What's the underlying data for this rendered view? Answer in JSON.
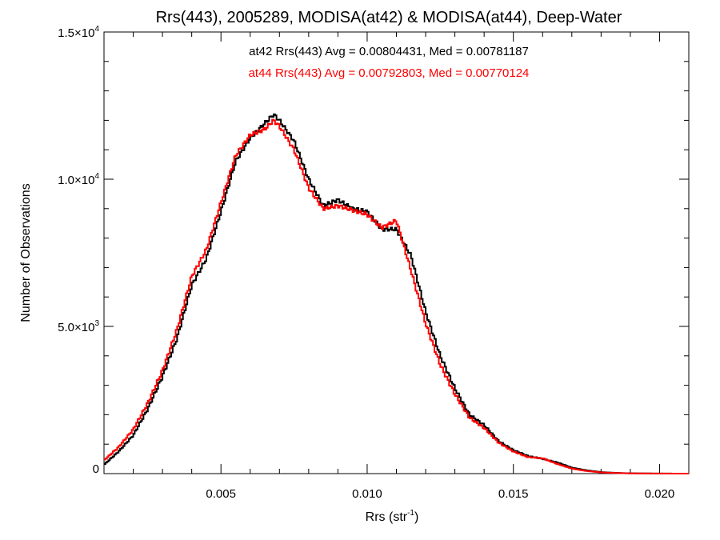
{
  "chart_data": {
    "type": "line",
    "title": "Rrs(443), 2005289, MODISA(at42) & MODISA(at44), Deep-Water",
    "xlabel": {
      "base": "Rrs (str",
      "sup": "-1",
      "close": ")"
    },
    "ylabel": "Number of Observations",
    "xlim": [
      0.001,
      0.021
    ],
    "ylim": [
      0,
      15000
    ],
    "x_ticks": [
      {
        "value": 0.005,
        "label": "0.005"
      },
      {
        "value": 0.01,
        "label": "0.010"
      },
      {
        "value": 0.015,
        "label": "0.015"
      },
      {
        "value": 0.02,
        "label": "0.020"
      }
    ],
    "y_ticks": [
      {
        "value": 0,
        "mant": "0",
        "exp": ""
      },
      {
        "value": 5000,
        "mant": "5.0",
        "exp": "3"
      },
      {
        "value": 10000,
        "mant": "1.0",
        "exp": "4"
      },
      {
        "value": 15000,
        "mant": "1.5",
        "exp": "4"
      }
    ],
    "x_minor_step": 0.001,
    "y_minor_step": 1000,
    "grid": false,
    "stepped": true,
    "series": [
      {
        "name": "at42",
        "color": "#000000",
        "annotation": "at42 Rrs(443) Avg = 0.00804431, Med = 0.00781187",
        "points": [
          [
            0.001,
            300
          ],
          [
            0.0015,
            750
          ],
          [
            0.002,
            1300
          ],
          [
            0.0025,
            2200
          ],
          [
            0.003,
            3300
          ],
          [
            0.0035,
            4600
          ],
          [
            0.004,
            6400
          ],
          [
            0.0045,
            7300
          ],
          [
            0.005,
            8900
          ],
          [
            0.0055,
            10600
          ],
          [
            0.006,
            11400
          ],
          [
            0.0065,
            11900
          ],
          [
            0.0068,
            12200
          ],
          [
            0.007,
            12000
          ],
          [
            0.0075,
            11300
          ],
          [
            0.008,
            10000
          ],
          [
            0.0085,
            9100
          ],
          [
            0.009,
            9300
          ],
          [
            0.0095,
            9000
          ],
          [
            0.01,
            8900
          ],
          [
            0.0105,
            8300
          ],
          [
            0.011,
            8300
          ],
          [
            0.0115,
            7400
          ],
          [
            0.012,
            5500
          ],
          [
            0.0125,
            4000
          ],
          [
            0.013,
            2900
          ],
          [
            0.0135,
            2000
          ],
          [
            0.014,
            1650
          ],
          [
            0.0145,
            1100
          ],
          [
            0.015,
            800
          ],
          [
            0.0155,
            600
          ],
          [
            0.016,
            500
          ],
          [
            0.0165,
            380
          ],
          [
            0.017,
            200
          ],
          [
            0.0175,
            110
          ],
          [
            0.018,
            50
          ],
          [
            0.0185,
            25
          ],
          [
            0.019,
            10
          ],
          [
            0.02,
            3
          ],
          [
            0.021,
            0
          ]
        ]
      },
      {
        "name": "at44",
        "color": "#ff0000",
        "annotation": "at44 Rrs(443) Avg = 0.00792803, Med = 0.00770124",
        "points": [
          [
            0.001,
            450
          ],
          [
            0.0015,
            900
          ],
          [
            0.002,
            1500
          ],
          [
            0.0025,
            2400
          ],
          [
            0.003,
            3500
          ],
          [
            0.0035,
            4900
          ],
          [
            0.004,
            6700
          ],
          [
            0.0045,
            7600
          ],
          [
            0.005,
            9200
          ],
          [
            0.0055,
            10800
          ],
          [
            0.006,
            11500
          ],
          [
            0.0065,
            11700
          ],
          [
            0.0068,
            12000
          ],
          [
            0.007,
            11800
          ],
          [
            0.0075,
            11000
          ],
          [
            0.008,
            9700
          ],
          [
            0.0085,
            9000
          ],
          [
            0.009,
            9100
          ],
          [
            0.0095,
            8950
          ],
          [
            0.01,
            8800
          ],
          [
            0.0105,
            8350
          ],
          [
            0.011,
            8600
          ],
          [
            0.0115,
            6900
          ],
          [
            0.012,
            5100
          ],
          [
            0.0125,
            3700
          ],
          [
            0.013,
            2700
          ],
          [
            0.0135,
            1900
          ],
          [
            0.014,
            1550
          ],
          [
            0.0145,
            1050
          ],
          [
            0.015,
            750
          ],
          [
            0.0155,
            560
          ],
          [
            0.016,
            520
          ],
          [
            0.0165,
            330
          ],
          [
            0.017,
            170
          ],
          [
            0.0175,
            90
          ],
          [
            0.018,
            40
          ],
          [
            0.0185,
            20
          ],
          [
            0.019,
            8
          ],
          [
            0.02,
            2
          ],
          [
            0.021,
            0
          ]
        ]
      }
    ]
  }
}
